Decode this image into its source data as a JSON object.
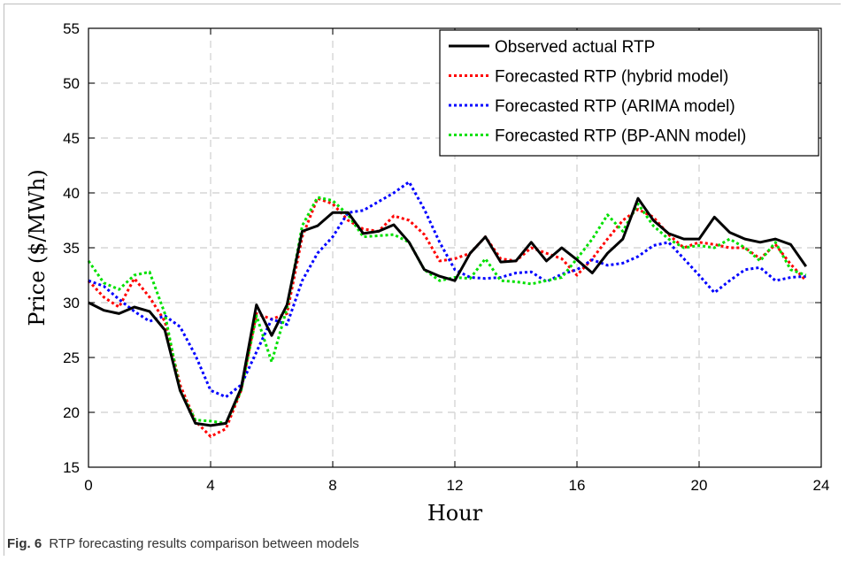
{
  "caption": {
    "label": "Fig. 6",
    "text": "RTP forecasting results comparison between models"
  },
  "chart_data": {
    "type": "line",
    "xlabel": "Hour",
    "ylabel": "Price ($/MWh)",
    "xlim": [
      0,
      24
    ],
    "ylim": [
      15,
      55
    ],
    "xticks": [
      0,
      4,
      8,
      12,
      16,
      20,
      24
    ],
    "yticks": [
      15,
      20,
      25,
      30,
      35,
      40,
      45,
      50,
      55
    ],
    "grid": true,
    "legend_position": "top-right",
    "x": [
      0,
      0.5,
      1,
      1.5,
      2,
      2.5,
      3,
      3.5,
      4,
      4.5,
      5,
      5.5,
      6,
      6.5,
      7,
      7.5,
      8,
      8.5,
      9,
      9.5,
      10,
      10.5,
      11,
      11.5,
      12,
      12.5,
      13,
      13.5,
      14,
      14.5,
      15,
      15.5,
      16,
      16.5,
      17,
      17.5,
      18,
      18.5,
      19,
      19.5,
      20,
      20.5,
      21,
      21.5,
      22,
      22.5,
      23,
      23.5
    ],
    "series": [
      {
        "name": "Observed actual RTP",
        "color": "#000000",
        "dash": "solid",
        "values": [
          30.0,
          29.3,
          29.0,
          29.6,
          29.2,
          27.5,
          22.0,
          19.0,
          18.8,
          19.0,
          22.2,
          29.8,
          27.0,
          29.8,
          36.5,
          37.0,
          38.2,
          38.2,
          36.3,
          36.5,
          37.1,
          35.5,
          33.0,
          32.4,
          32.0,
          34.5,
          36.0,
          33.7,
          33.8,
          35.5,
          33.8,
          35.0,
          33.9,
          32.7,
          34.5,
          35.8,
          39.5,
          37.5,
          36.3,
          35.8,
          35.8,
          37.8,
          36.4,
          35.8,
          35.5,
          35.8,
          35.3,
          33.3
        ]
      },
      {
        "name": "Forecasted RTP (hybrid model)",
        "color": "#ff0000",
        "dash": "dotted",
        "values": [
          32.0,
          30.5,
          29.6,
          32.2,
          30.5,
          28.3,
          22.5,
          19.2,
          17.8,
          18.5,
          22.0,
          29.0,
          28.5,
          29.0,
          36.0,
          39.5,
          39.0,
          37.5,
          36.7,
          36.5,
          37.9,
          37.5,
          36.2,
          33.8,
          34.0,
          34.5,
          36.0,
          34.0,
          33.8,
          35.0,
          34.5,
          34.0,
          32.5,
          34.0,
          35.8,
          37.5,
          38.5,
          37.8,
          36.2,
          35.0,
          35.5,
          35.3,
          35.0,
          35.0,
          34.0,
          35.3,
          33.5,
          32.0
        ]
      },
      {
        "name": "Forecasted RTP (ARIMA model)",
        "color": "#0000ff",
        "dash": "dotted",
        "values": [
          32.0,
          31.5,
          30.3,
          29.2,
          28.3,
          28.8,
          27.8,
          25.2,
          22.0,
          21.4,
          22.5,
          25.5,
          28.5,
          28.0,
          32.0,
          34.5,
          36.0,
          38.2,
          38.4,
          39.2,
          40.0,
          41.0,
          38.5,
          35.5,
          33.0,
          32.3,
          32.2,
          32.3,
          32.7,
          32.8,
          31.9,
          32.6,
          33.0,
          33.9,
          33.4,
          33.6,
          34.2,
          35.2,
          35.5,
          34.0,
          32.5,
          30.9,
          32.0,
          33.0,
          33.2,
          32.0,
          32.3,
          32.4
        ]
      },
      {
        "name": "Forecasted RTP (BP-ANN model)",
        "color": "#00e000",
        "dash": "dotted",
        "values": [
          33.8,
          31.8,
          31.2,
          32.5,
          32.8,
          29.0,
          22.0,
          19.3,
          19.2,
          19.0,
          22.0,
          28.8,
          24.6,
          29.5,
          37.0,
          39.6,
          39.3,
          38.0,
          36.0,
          36.1,
          36.2,
          35.5,
          33.0,
          32.0,
          32.3,
          32.2,
          34.0,
          32.0,
          31.9,
          31.7,
          32.0,
          32.3,
          34.0,
          35.8,
          38.0,
          36.5,
          39.0,
          37.0,
          35.8,
          35.0,
          35.2,
          35.0,
          35.8,
          35.0,
          33.8,
          35.5,
          33.0,
          32.5
        ]
      }
    ]
  }
}
